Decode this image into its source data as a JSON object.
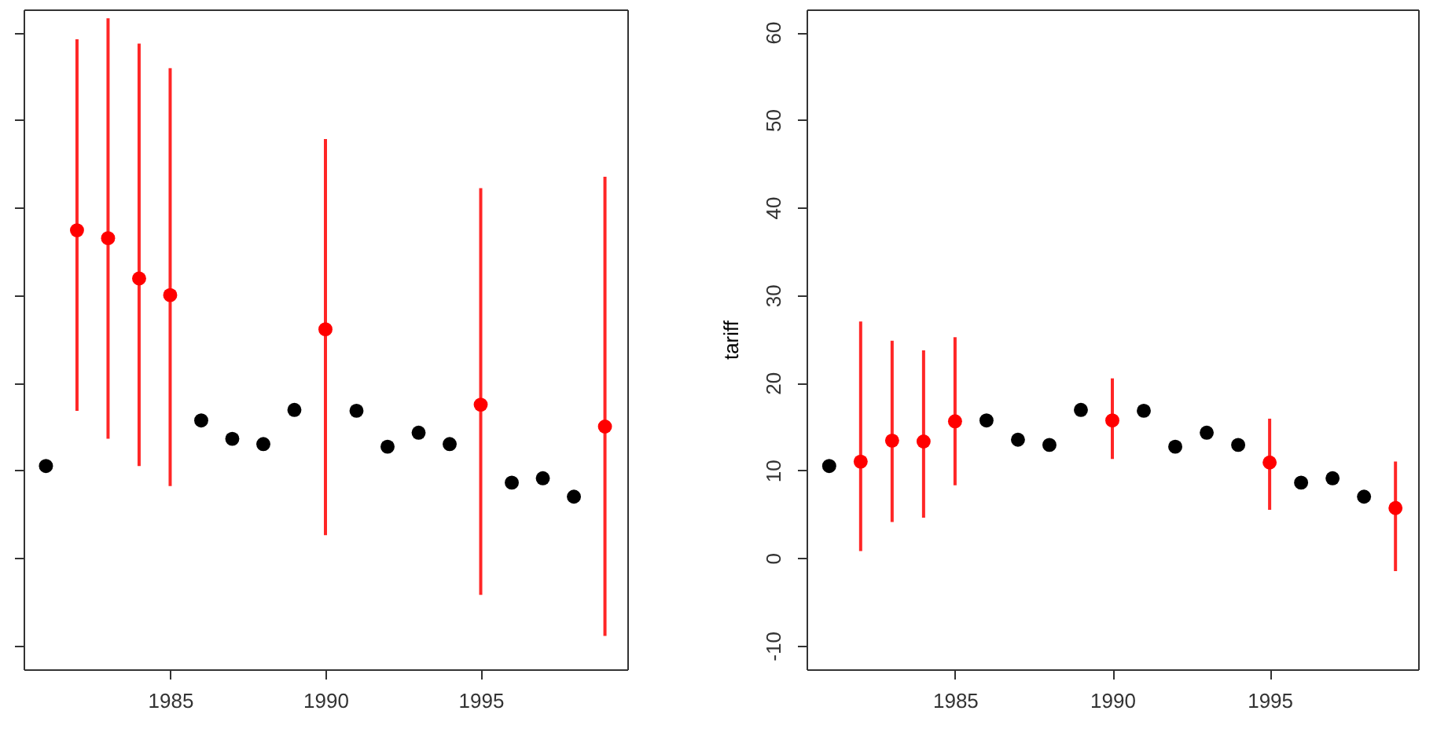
{
  "chart_data": [
    {
      "type": "scatter",
      "xlim": [
        1980.28,
        1999.72
      ],
      "xticks": [
        1985,
        1990,
        1995
      ],
      "ylim": [
        -12.7,
        62.6
      ],
      "yticks": [
        {
          "value": -10,
          "label": null
        },
        {
          "value": 0,
          "label": null
        },
        {
          "value": 10,
          "label": null
        },
        {
          "value": 20,
          "label": null
        },
        {
          "value": 30,
          "label": null
        },
        {
          "value": 40,
          "label": null
        },
        {
          "value": 50,
          "label": null
        },
        {
          "value": 60,
          "label": null
        }
      ],
      "tick_labels": "x",
      "marker": "circle",
      "grid": false,
      "legend": false,
      "series": [
        {
          "color": "#000000",
          "x": [
            1981,
            1986,
            1987,
            1988,
            1989,
            1991,
            1992,
            1993,
            1994,
            1996,
            1997,
            1998
          ],
          "values": [
            10.5,
            15.7,
            13.6,
            13.0,
            16.9,
            16.8,
            12.7,
            14.3,
            13.0,
            8.6,
            9.1,
            7.0
          ]
        },
        {
          "color": "#ff0000",
          "x": [
            1982,
            1983,
            1984,
            1985,
            1990,
            1995,
            1999
          ],
          "values": [
            37.4,
            36.5,
            31.9,
            30.0,
            26.1,
            17.5,
            15.0
          ],
          "errors": [
            [
              16.8,
              59.2
            ],
            [
              13.6,
              61.6
            ],
            [
              10.5,
              58.7
            ],
            [
              8.2,
              55.9
            ],
            [
              2.6,
              47.8
            ],
            [
              -4.2,
              42.2
            ],
            [
              -8.9,
              43.5
            ]
          ]
        }
      ]
    },
    {
      "type": "scatter",
      "ylabel": "tariff",
      "xlim": [
        1980.28,
        1999.72
      ],
      "xticks": [
        1985,
        1990,
        1995
      ],
      "ylim": [
        -12.7,
        62.6
      ],
      "yticks": [
        -10,
        0,
        10,
        20,
        30,
        40,
        50,
        60
      ],
      "marker": "circle",
      "grid": false,
      "legend": false,
      "series": [
        {
          "color": "#000000",
          "x": [
            1981,
            1986,
            1987,
            1988,
            1989,
            1991,
            1992,
            1993,
            1994,
            1996,
            1997,
            1998
          ],
          "values": [
            10.5,
            15.7,
            13.5,
            12.9,
            16.9,
            16.8,
            12.7,
            14.3,
            12.9,
            8.6,
            9.1,
            7.0
          ]
        },
        {
          "color": "#ff0000",
          "x": [
            1982,
            1983,
            1984,
            1985,
            1990,
            1995,
            1999
          ],
          "values": [
            11.0,
            13.4,
            13.3,
            15.6,
            15.7,
            10.9,
            5.7
          ],
          "errors": [
            [
              0.8,
              27.0
            ],
            [
              4.1,
              24.8
            ],
            [
              4.6,
              23.7
            ],
            [
              8.3,
              25.2
            ],
            [
              11.3,
              20.5
            ],
            [
              5.5,
              15.9
            ],
            [
              -1.5,
              11.0
            ]
          ]
        }
      ]
    }
  ]
}
